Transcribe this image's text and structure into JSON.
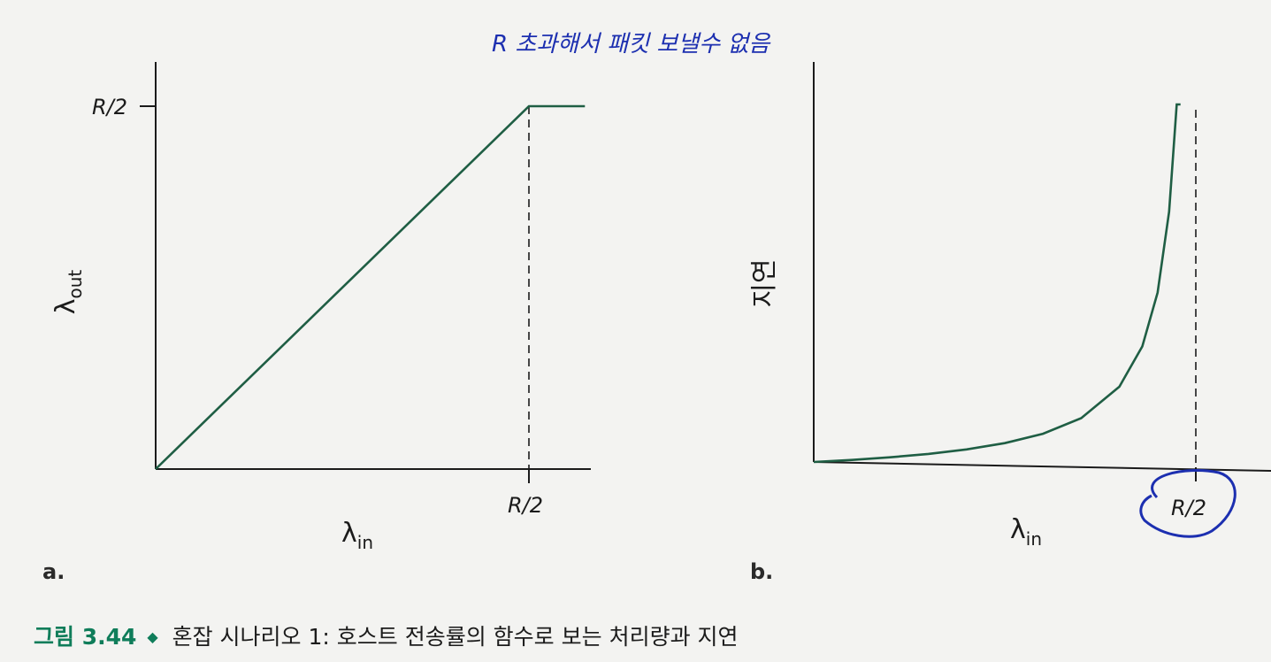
{
  "colors": {
    "curve": "#1f5e44",
    "axis": "#1b1b1b",
    "annotation": "#1c2fb0",
    "caption_accent": "#0f7d5a"
  },
  "chart_data": [
    {
      "type": "line",
      "panel_label": "a.",
      "xlabel": {
        "symbol": "λ",
        "sub": "in"
      },
      "ylabel": {
        "symbol": "λ",
        "sub": "out"
      },
      "x_ticks": [
        "R/2"
      ],
      "y_ticks": [
        "R/2"
      ],
      "xlim": [
        0,
        0.575
      ],
      "ylim": [
        0,
        0.5
      ],
      "series": [
        {
          "x": [
            0,
            0.5,
            0.575
          ],
          "y": [
            0,
            0.5,
            0.5
          ]
        }
      ],
      "reference_lines": [
        {
          "axis": "x",
          "value": 0.5,
          "style": "dashed"
        }
      ],
      "annotation": "R 초과해서 패킷 보낼수 없음"
    },
    {
      "type": "line",
      "panel_label": "b.",
      "xlabel": {
        "symbol": "λ",
        "sub": "in"
      },
      "ylabel": {
        "text": "지연"
      },
      "x_ticks": [
        "R/2"
      ],
      "xlim": [
        0,
        0.59
      ],
      "ylim": [
        0,
        20
      ],
      "series": [
        {
          "x": [
            0,
            0.05,
            0.1,
            0.15,
            0.2,
            0.25,
            0.3,
            0.35,
            0.4,
            0.43,
            0.45,
            0.465,
            0.475,
            0.48
          ],
          "y": [
            1.0,
            1.11,
            1.25,
            1.43,
            1.67,
            2.0,
            2.5,
            3.33,
            5.0,
            7.14,
            10.0,
            14.3,
            20.0,
            25.0
          ]
        }
      ],
      "reference_lines": [
        {
          "axis": "x",
          "value": 0.5,
          "style": "dashed"
        }
      ],
      "annotation_circle_tick": "R/2"
    }
  ],
  "caption": {
    "number": "그림 3.44",
    "text": "혼잡 시나리오 1: 호스트 전송률의 함수로 보는 처리량과 지연"
  }
}
